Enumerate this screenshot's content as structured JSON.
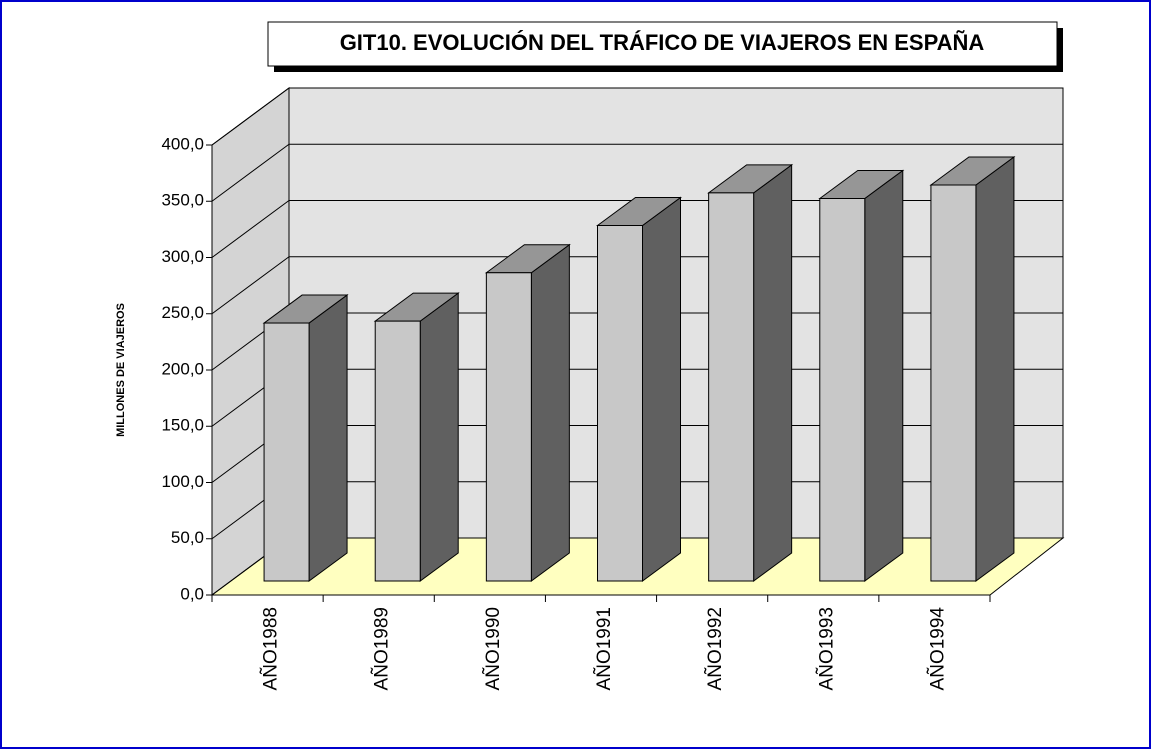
{
  "chart_data": {
    "type": "bar3d",
    "title": "GIT10.  EVOLUCIÓN DEL TRÁFICO DE VIAJEROS EN ESPAÑA",
    "y_label": "MILLONES DE VIAJEROS",
    "categories": [
      "AÑO1988",
      "AÑO1989",
      "AÑO1990",
      "AÑO1991",
      "AÑO1992",
      "AÑO1993",
      "AÑO1994"
    ],
    "values": [
      229.3,
      231,
      274,
      316,
      345,
      340,
      352
    ],
    "color": "#c8c8c8",
    "ylim": [
      0,
      400
    ],
    "yticks": [
      {
        "value": 0,
        "label": "0,0"
      },
      {
        "value": 50,
        "label": "50,0"
      },
      {
        "value": 100,
        "label": "100,0"
      },
      {
        "value": 150,
        "label": "150,0"
      },
      {
        "value": 200,
        "label": "200,0"
      },
      {
        "value": 250,
        "label": "250,0"
      },
      {
        "value": 300,
        "label": "300,0"
      },
      {
        "value": 350,
        "label": "350,0"
      },
      {
        "value": 400,
        "label": "400,0"
      }
    ],
    "grid": true
  }
}
